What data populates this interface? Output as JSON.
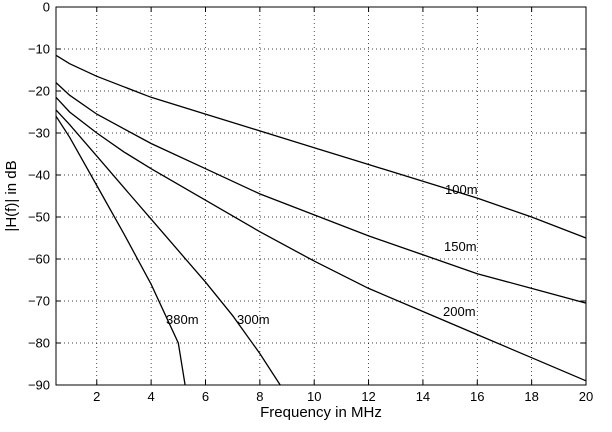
{
  "chart_data": {
    "type": "line",
    "title": "",
    "xlabel": "Frequency in MHz",
    "ylabel": "|H(f)| in dB",
    "xlim": [
      0.5,
      20
    ],
    "ylim": [
      -90,
      0
    ],
    "xticks": [
      2,
      4,
      6,
      8,
      10,
      12,
      14,
      16,
      18,
      20
    ],
    "yticks": [
      0,
      -10,
      -20,
      -30,
      -40,
      -50,
      -60,
      -70,
      -80,
      -90
    ],
    "grid": true,
    "series": [
      {
        "name": "100m",
        "x": [
          0.5,
          1,
          2,
          3,
          4,
          6,
          8,
          10,
          12,
          14,
          16,
          18,
          20
        ],
        "y": [
          -11.5,
          -13.5,
          -16.5,
          -19,
          -21.5,
          -25.5,
          -29.5,
          -33.5,
          -37.5,
          -41.5,
          -45.5,
          -50,
          -55
        ]
      },
      {
        "name": "150m",
        "x": [
          0.5,
          1,
          2,
          3,
          4,
          6,
          8,
          10,
          12,
          14,
          16,
          18,
          20
        ],
        "y": [
          -18,
          -21,
          -25.5,
          -29,
          -32.5,
          -38.5,
          -44.5,
          -49.5,
          -54.5,
          -59,
          -63.5,
          -67,
          -70.5
        ]
      },
      {
        "name": "200m",
        "x": [
          0.5,
          1,
          2,
          3,
          4,
          6,
          8,
          10,
          12,
          14,
          16,
          18,
          20
        ],
        "y": [
          -21.5,
          -25,
          -30,
          -34.5,
          -38.5,
          -46,
          -53.5,
          -60.5,
          -67,
          -72.5,
          -78,
          -83.5,
          -89
        ]
      },
      {
        "name": "300m",
        "x": [
          0.5,
          1,
          2,
          3,
          4,
          5,
          6,
          7,
          8,
          8.75
        ],
        "y": [
          -24.5,
          -28,
          -35.5,
          -43,
          -50.5,
          -58,
          -65.5,
          -73.5,
          -82.5,
          -90
        ]
      },
      {
        "name": "380m",
        "x": [
          0.5,
          1,
          2,
          3,
          4,
          5,
          5.25
        ],
        "y": [
          -26,
          -31,
          -42.5,
          -54,
          -66,
          -80,
          -90
        ]
      }
    ]
  }
}
